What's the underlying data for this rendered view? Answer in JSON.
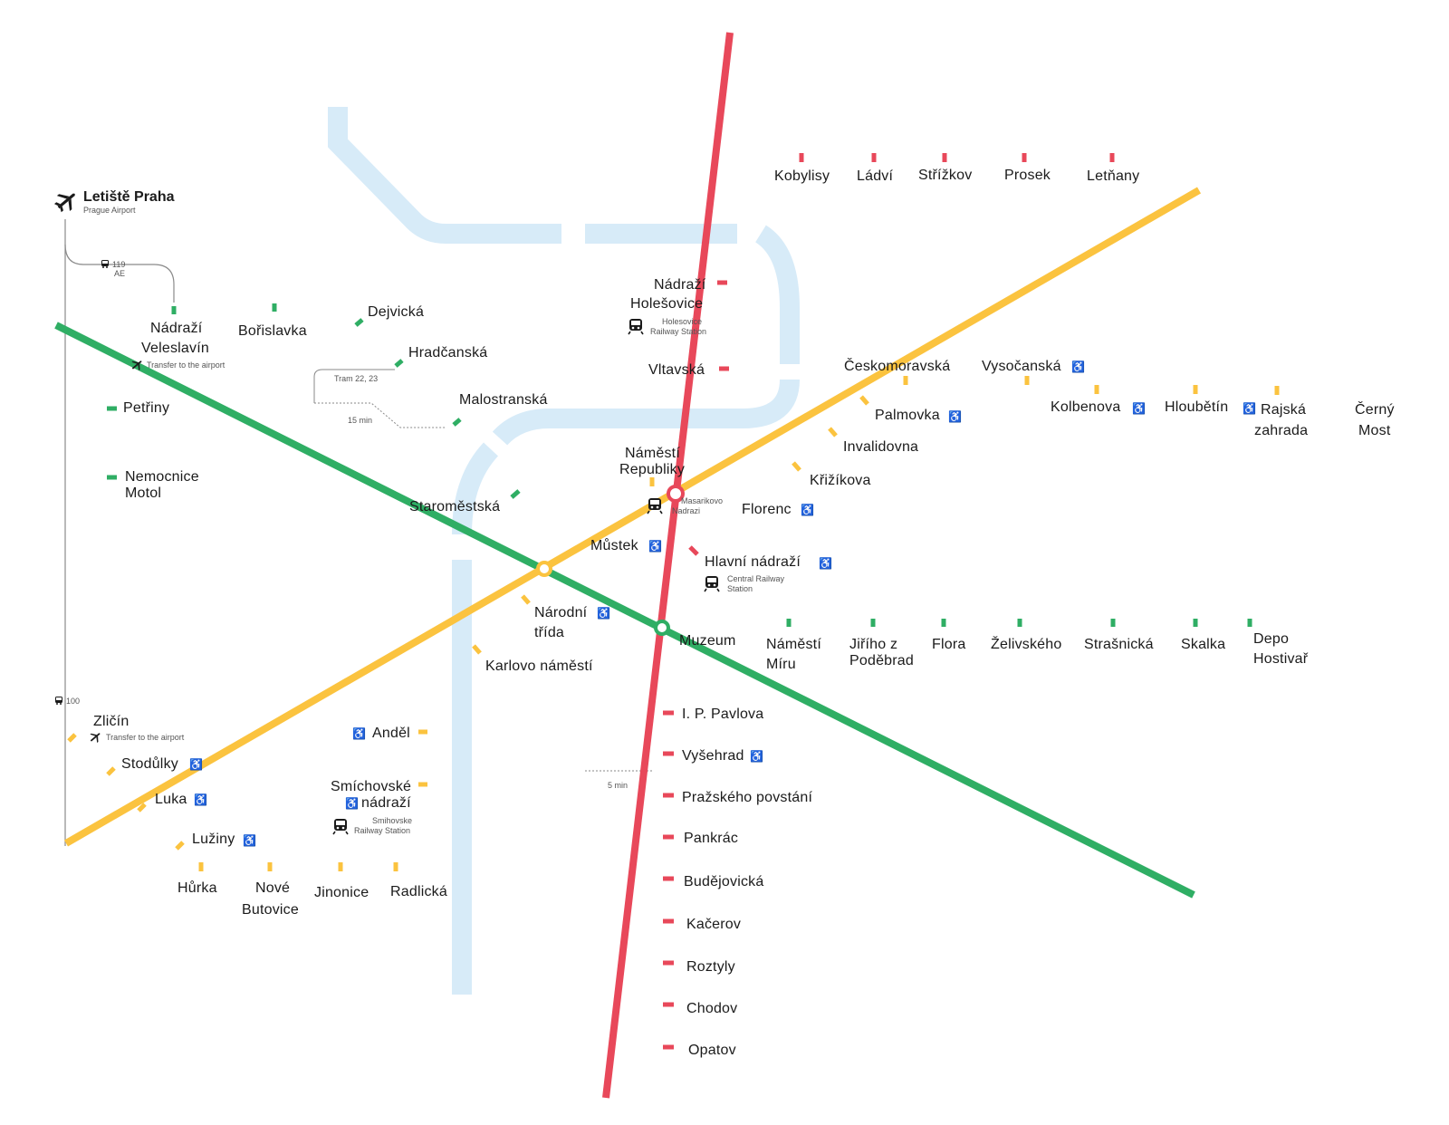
{
  "colors": {
    "line_a": "#2fae64",
    "line_b": "#fbc33f",
    "line_c": "#e8485a",
    "river": "#d7ebf8",
    "accessible": "#1e88c8",
    "text": "#1b1b1b",
    "secondary": "#555555"
  },
  "icons": {
    "airport": "airplane-icon",
    "train": "train-icon",
    "bus": "bus-icon",
    "accessible": "wheelchair-icon"
  },
  "airport": {
    "name": "Letiště Praha",
    "name_en": "Prague Airport",
    "bus_119": "119",
    "bus_ae": "AE",
    "bus_100": "100"
  },
  "transfer_note": "Transfer to the airport",
  "access_symbol": "♿",
  "walk_tram_label": "Tram 22, 23",
  "walk_15": "15 min",
  "walk_5": "5 min",
  "rail": {
    "holesovice": "Holesovice Railway Station",
    "masarykovo": "Masarikovo Nadrazi",
    "central": "Central Railway Station",
    "smichov": "Smihovske Railway Station"
  },
  "stations": {
    "a": {
      "nadrazi_veleslavin": "Nádraží Veleslavín",
      "borislavka": "Bořislavka",
      "dejvicka": "Dejvická",
      "hradcanska": "Hradčanská",
      "malostranska": "Malostranská",
      "petriny": "Petřiny",
      "nemocnice_motol": "Nemocnice Motol",
      "staromestska": "Staroměstská",
      "mustek": "Můstek",
      "muzeum": "Muzeum",
      "namesti_miru": "Náměstí Míru",
      "jiriho_z_podebrad": "Jiřího z Poděbrad",
      "flora": "Flora",
      "zelivskeho": "Želivského",
      "strasnicka": "Strašnická",
      "skalka": "Skalka",
      "depo_hostivar": "Depo Hostivař"
    },
    "b": {
      "zlicin": "Zličín",
      "stodulky": "Stodůlky",
      "luka": "Luka",
      "luziny": "Lužiny",
      "hurka": "Hůrka",
      "nove_butovice": "Nové Butovice",
      "jinonice": "Jinonice",
      "radlicka": "Radlická",
      "andel": "Anděl",
      "smichovske_nadrazi": "Smíchovské nádraží",
      "karlovo_namesti": "Karlovo náměstí",
      "narodni_trida": "Národní třída",
      "namesti_republiky": "Náměstí Republiky",
      "florenc": "Florenc",
      "krizikova": "Křižíkova",
      "invalidovna": "Invalidovna",
      "palmovka": "Palmovka",
      "ceskomoravska": "Českomoravská",
      "vysocanska": "Vysočanská",
      "kolbenova": "Kolbenova",
      "hloubetin": "Hloubětín",
      "rajska_zahrada": "Rajská zahrada",
      "cerny_most": "Černý Most"
    },
    "c": {
      "kobylisy": "Kobylisy",
      "ladvi": "Ládví",
      "strizkov": "Střížkov",
      "prosek": "Prosek",
      "letnany": "Letňany",
      "nadrazi_holesovice": "Nádraží Holešovice",
      "vltavska": "Vltavská",
      "hlavni_nadrazi": "Hlavní nádraží",
      "ip_pavlova": "I. P. Pavlova",
      "vysehrad": "Vyšehrad",
      "prazskeho_povstani": "Pražského povstání",
      "pankrac": "Pankrác",
      "budejovicka": "Budějovická",
      "kacerov": "Kačerov",
      "roztyly": "Roztyly",
      "chodov": "Chodov",
      "opatov": "Opatov"
    }
  }
}
